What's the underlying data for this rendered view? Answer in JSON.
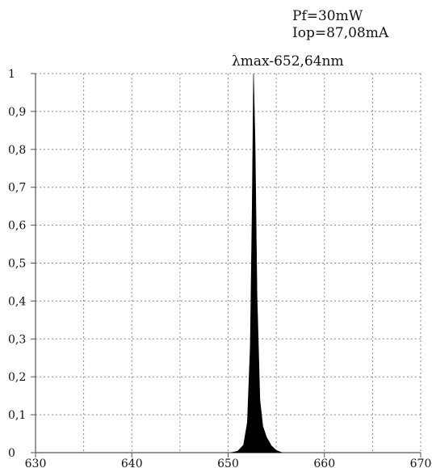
{
  "chart_data": {
    "type": "area",
    "title": "",
    "xlabel": "",
    "ylabel": "",
    "annotations": [
      "Pf=30mW",
      "Iop=87,08mA",
      "λmax-652,64nm"
    ],
    "xlim": [
      630,
      670
    ],
    "ylim": [
      0,
      1
    ],
    "x_ticks": [
      630,
      640,
      650,
      660,
      670
    ],
    "x_tick_labels": [
      "630",
      "640",
      "650",
      "660",
      "670"
    ],
    "y_ticks": [
      0,
      0.1,
      0.2,
      0.3,
      0.4,
      0.5,
      0.6,
      0.7,
      0.8,
      0.9,
      1
    ],
    "y_tick_labels": [
      "0",
      "0,1",
      "0,2",
      "0,3",
      "0,4",
      "0,5",
      "0,6",
      "0,7",
      "0,8",
      "0,9",
      "1"
    ],
    "grid": true,
    "grid_style": "dotted",
    "fill_color": "#000000",
    "series": [
      {
        "x": [
          650.3,
          651.0,
          651.6,
          652.0,
          652.3,
          652.5,
          652.64,
          652.8,
          653.0,
          653.3,
          653.6,
          654.0,
          654.5,
          655.0,
          655.6
        ],
        "values": [
          0,
          0.004,
          0.02,
          0.08,
          0.28,
          0.65,
          1.0,
          0.82,
          0.42,
          0.14,
          0.07,
          0.04,
          0.018,
          0.006,
          0
        ]
      }
    ]
  }
}
